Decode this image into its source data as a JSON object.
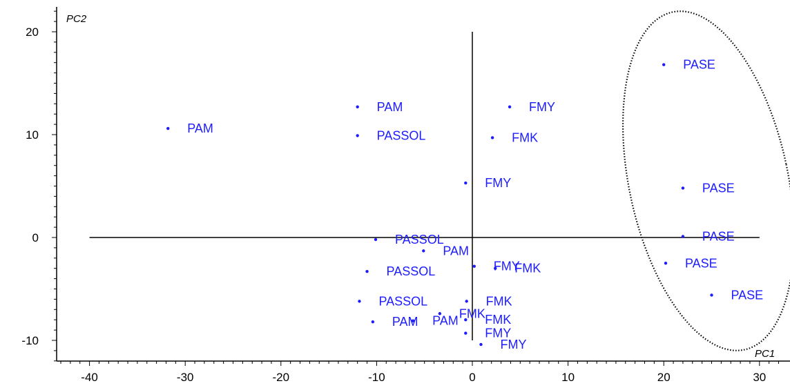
{
  "chart_data": {
    "type": "scatter",
    "xlabel": "PC1",
    "ylabel": "PC2",
    "xlim": [
      -44,
      32
    ],
    "ylim": [
      -12,
      22
    ],
    "x_ticks": [
      -40,
      -30,
      -20,
      -10,
      0,
      10,
      20,
      30
    ],
    "y_ticks": [
      -10,
      0,
      10,
      20
    ],
    "grid": false,
    "legend": "none",
    "colors": {
      "points": "#1c1cff",
      "axes": "#000000",
      "ellipse": "#000000"
    },
    "points": [
      {
        "x": -31.8,
        "y": 10.6,
        "label": "PAM"
      },
      {
        "x": -12,
        "y": 12.7,
        "label": "PAM"
      },
      {
        "x": -12,
        "y": 9.9,
        "label": "PASSOL"
      },
      {
        "x": 3.9,
        "y": 12.7,
        "label": "FMY"
      },
      {
        "x": 2.1,
        "y": 9.7,
        "label": "FMK"
      },
      {
        "x": -0.7,
        "y": 5.3,
        "label": "FMY"
      },
      {
        "x": 20,
        "y": 16.8,
        "label": "PASE"
      },
      {
        "x": 22,
        "y": 4.8,
        "label": "PASE"
      },
      {
        "x": 22,
        "y": 0.1,
        "label": "PASE"
      },
      {
        "x": 20.2,
        "y": -2.5,
        "label": "PASE"
      },
      {
        "x": 25,
        "y": -5.6,
        "label": "PASE"
      },
      {
        "x": -10.1,
        "y": -0.2,
        "label": "PASSOL"
      },
      {
        "x": -5.1,
        "y": -1.3,
        "label": "PAM"
      },
      {
        "x": -11,
        "y": -3.3,
        "label": "PASSOL"
      },
      {
        "x": 0.2,
        "y": -2.8,
        "label": "FMY"
      },
      {
        "x": 2.4,
        "y": -3.0,
        "label": "FMK"
      },
      {
        "x": -11.8,
        "y": -6.2,
        "label": "PASSOL"
      },
      {
        "x": -0.6,
        "y": -6.2,
        "label": "FMK"
      },
      {
        "x": -3.4,
        "y": -7.4,
        "label": "FMK"
      },
      {
        "x": -10.4,
        "y": -8.2,
        "label": "PAM"
      },
      {
        "x": -6.2,
        "y": -8.1,
        "label": "PAM"
      },
      {
        "x": -0.7,
        "y": -8.0,
        "label": "FMK"
      },
      {
        "x": -0.7,
        "y": -9.3,
        "label": "FMY"
      },
      {
        "x": 0.9,
        "y": -10.4,
        "label": "FMY"
      }
    ]
  }
}
